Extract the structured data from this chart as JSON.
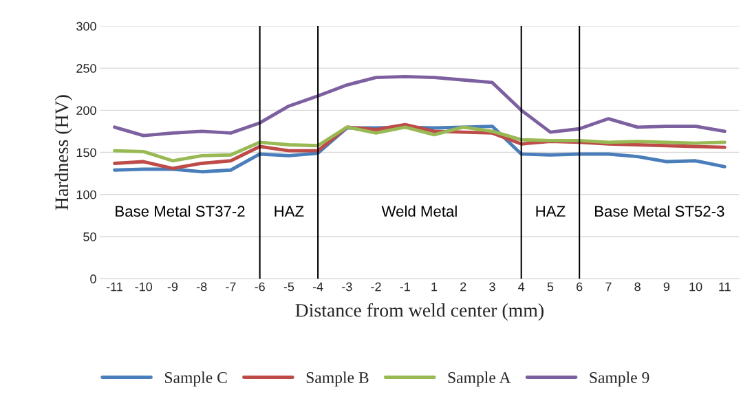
{
  "chart_data": {
    "type": "line",
    "xlabel": "Distance from weld center (mm)",
    "ylabel": "Hardness (HV)",
    "categories": [
      "-11",
      "-10",
      "-9",
      "-8",
      "-7",
      "-6",
      "-5",
      "-4",
      "-3",
      "-2",
      "-1",
      "1",
      "2",
      "3",
      "4",
      "5",
      "6",
      "7",
      "8",
      "9",
      "10",
      "11"
    ],
    "series": [
      {
        "name": "Sample C",
        "color": "#4a7ebb",
        "values": [
          129,
          130,
          130,
          127,
          129,
          148,
          146,
          149,
          179,
          179,
          180,
          179,
          180,
          181,
          148,
          147,
          148,
          148,
          145,
          139,
          140,
          133
        ]
      },
      {
        "name": "Sample B",
        "color": "#be4b48",
        "values": [
          137,
          139,
          131,
          137,
          140,
          157,
          152,
          152,
          180,
          177,
          183,
          175,
          174,
          173,
          160,
          163,
          162,
          160,
          159,
          158,
          157,
          156
        ]
      },
      {
        "name": "Sample A",
        "color": "#98b954",
        "values": [
          152,
          151,
          140,
          146,
          147,
          162,
          159,
          158,
          180,
          173,
          180,
          171,
          180,
          175,
          165,
          164,
          164,
          162,
          163,
          162,
          161,
          162
        ]
      },
      {
        "name": "Sample 9",
        "color": "#7d60a0",
        "values": [
          180,
          170,
          173,
          175,
          173,
          185,
          205,
          217,
          230,
          239,
          240,
          239,
          236,
          233,
          200,
          174,
          178,
          190,
          180,
          181,
          181,
          175
        ]
      }
    ],
    "ylim": [
      0,
      300
    ],
    "yticks": [
      0,
      50,
      100,
      150,
      200,
      250,
      300
    ],
    "ref_lines": [
      {
        "axis": "x",
        "value": "-6",
        "color": "#000000"
      },
      {
        "axis": "x",
        "value": "-4",
        "color": "#000000"
      },
      {
        "axis": "x",
        "value": "4",
        "color": "#000000"
      },
      {
        "axis": "x",
        "value": "6",
        "color": "#000000"
      }
    ],
    "annotations": [
      "Base Metal ST37-2",
      "HAZ",
      "Weld Metal",
      "HAZ",
      "Base Metal ST52-3"
    ],
    "grid": "y",
    "legend": "bottom",
    "marker": "none",
    "line_style": "solid"
  }
}
